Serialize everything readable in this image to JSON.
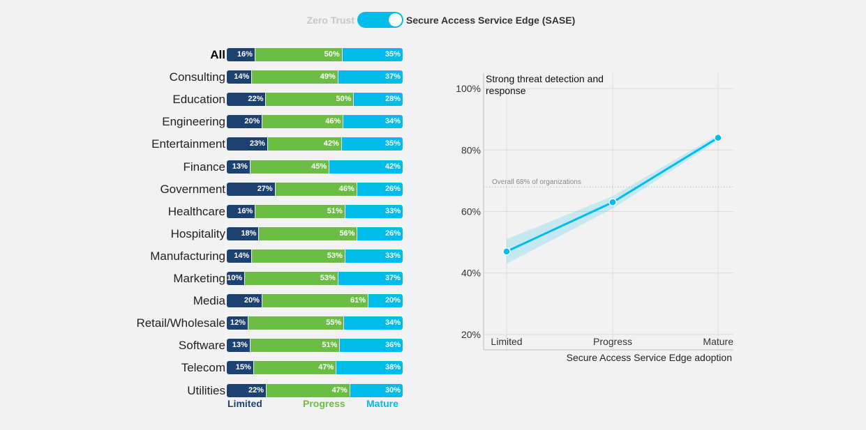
{
  "toggle": {
    "left_label": "Zero Trust",
    "right_label": "Secure Access Service Edge (SASE)",
    "active": "right"
  },
  "colors": {
    "limited": "#1d4272",
    "progress": "#6cbd45",
    "mature": "#00bceb",
    "toggle_off_text": "#c8c8c8"
  },
  "chart_data": [
    {
      "type": "bar",
      "stacked": true,
      "orientation": "horizontal",
      "categories": [
        "All",
        "Consulting",
        "Education",
        "Engineering",
        "Entertainment",
        "Finance",
        "Government",
        "Healthcare",
        "Hospitality",
        "Manufacturing",
        "Marketing",
        "Media",
        "Retail/Wholesale",
        "Software",
        "Telecom",
        "Utilities"
      ],
      "series": [
        {
          "name": "Limited",
          "values": [
            16,
            14,
            22,
            20,
            23,
            13,
            27,
            16,
            18,
            14,
            10,
            20,
            12,
            13,
            15,
            22
          ]
        },
        {
          "name": "Progress",
          "values": [
            50,
            49,
            50,
            46,
            42,
            45,
            46,
            51,
            56,
            53,
            53,
            61,
            55,
            51,
            47,
            47
          ]
        },
        {
          "name": "Mature",
          "values": [
            35,
            37,
            28,
            34,
            35,
            42,
            26,
            33,
            26,
            33,
            37,
            20,
            34,
            36,
            38,
            30
          ]
        }
      ],
      "legend_position": "bottom"
    },
    {
      "type": "line",
      "title": "Strong threat detection and response",
      "xlabel": "Secure Access Service Edge adoption",
      "x": [
        "Limited",
        "Progress",
        "Mature"
      ],
      "series": [
        {
          "values": [
            47,
            63,
            84
          ],
          "ci_low": [
            43,
            61,
            83
          ],
          "ci_high": [
            51,
            65,
            85
          ]
        }
      ],
      "ylim": [
        15,
        105
      ],
      "yticks": [
        20,
        40,
        60,
        80,
        100
      ],
      "ytick_labels": [
        "20%",
        "40%",
        "60%",
        "80%",
        "100%"
      ],
      "reference_line": {
        "value": 68,
        "label": "Overall 68% of organizations"
      },
      "grid": true
    }
  ]
}
